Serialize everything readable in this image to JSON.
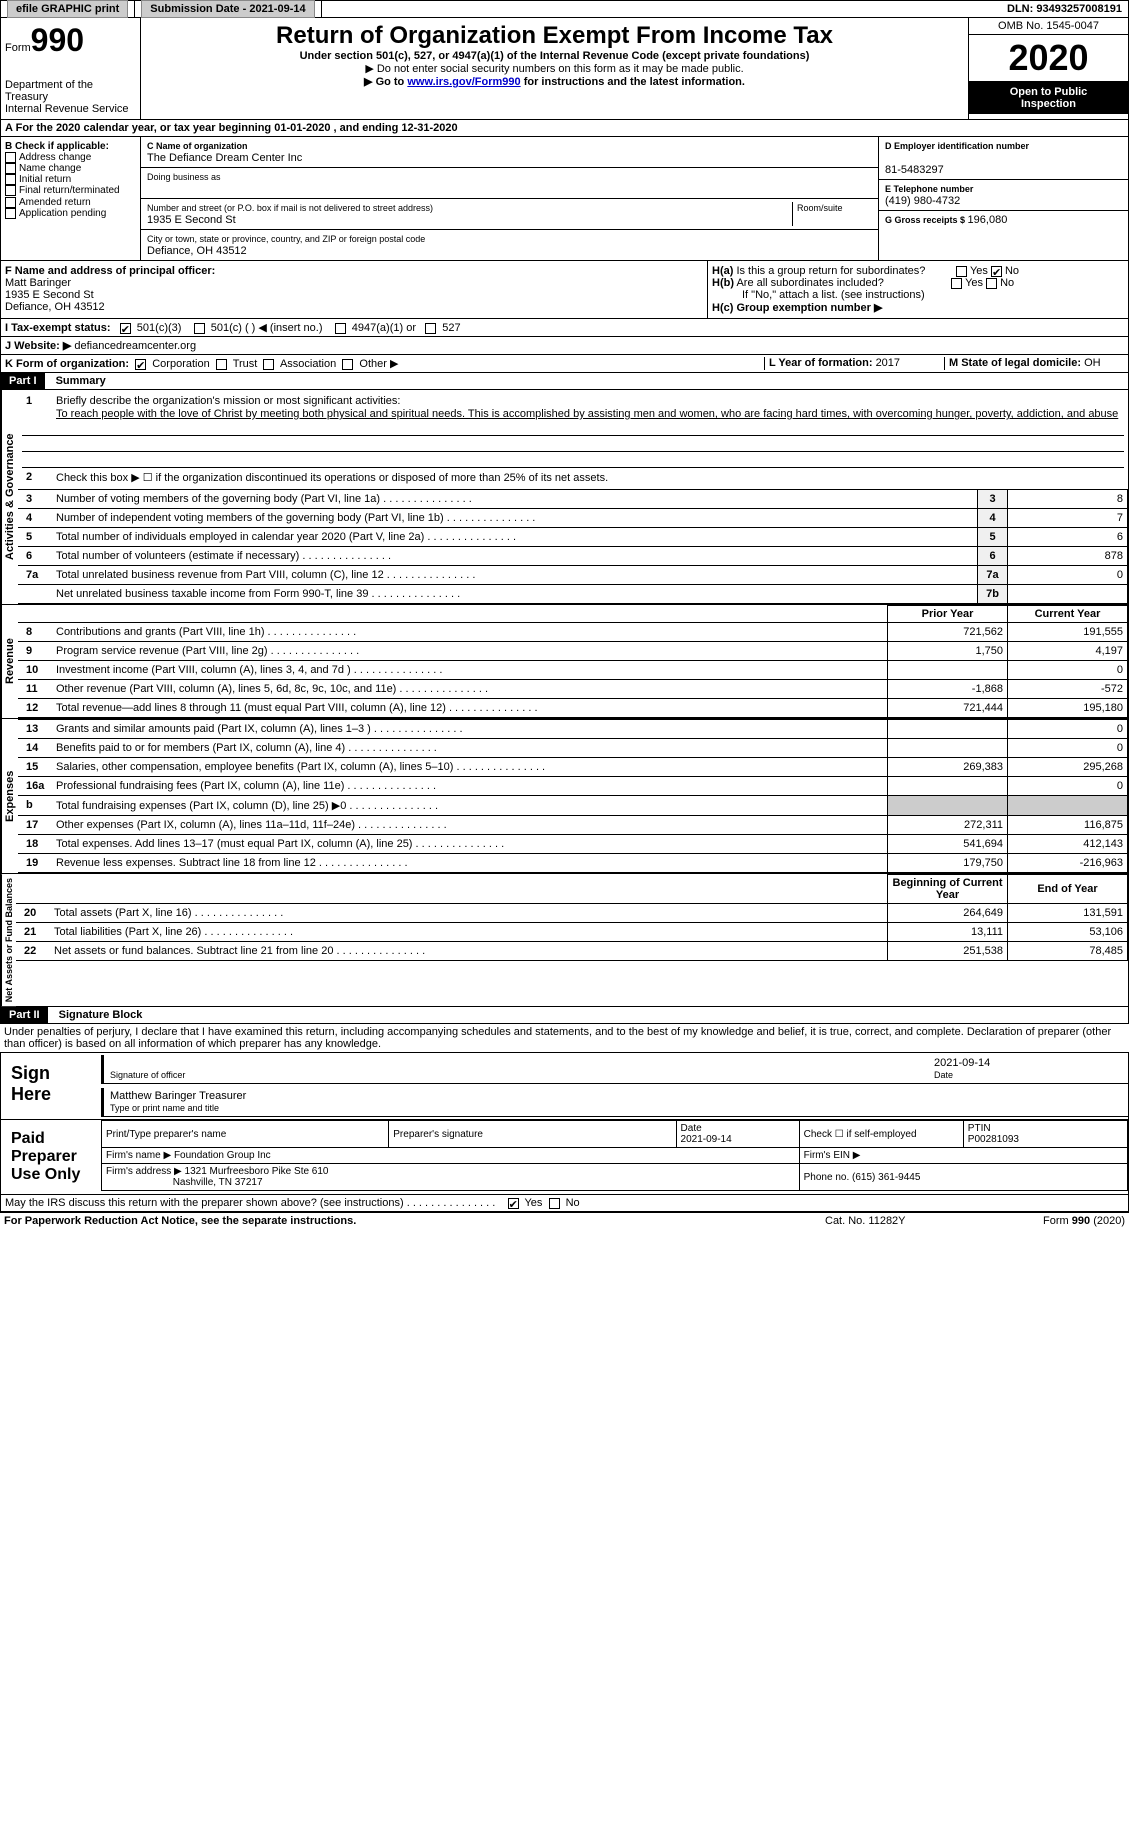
{
  "header": {
    "efile": "efile GRAPHIC print",
    "submission_label": "Submission Date - ",
    "submission_date": "2021-09-14",
    "dln_label": "DLN: ",
    "dln": "93493257008191"
  },
  "form_header": {
    "form_word": "Form",
    "form_num": "990",
    "dept1": "Department of the Treasury",
    "dept2": "Internal Revenue Service",
    "title": "Return of Organization Exempt From Income Tax",
    "subtitle": "Under section 501(c), 527, or 4947(a)(1) of the Internal Revenue Code (except private foundations)",
    "note1": "▶ Do not enter social security numbers on this form as it may be made public.",
    "note2_pre": "▶ Go to ",
    "note2_link": "www.irs.gov/Form990",
    "note2_post": " for instructions and the latest information.",
    "omb": "OMB No. 1545-0047",
    "year": "2020",
    "inspect1": "Open to Public",
    "inspect2": "Inspection"
  },
  "period": {
    "label_a": "A",
    "text": "For the 2020 calendar year, or tax year beginning 01-01-2020    , and ending 12-31-2020"
  },
  "box_b": {
    "label": "B Check if applicable:",
    "opts": [
      "Address change",
      "Name change",
      "Initial return",
      "Final return/terminated",
      "Amended return",
      "Application pending"
    ]
  },
  "box_c": {
    "label": "C Name of organization",
    "name": "The Defiance Dream Center Inc",
    "dba_label": "Doing business as",
    "addr_label": "Number and street (or P.O. box if mail is not delivered to street address)",
    "room_label": "Room/suite",
    "addr": "1935 E Second St",
    "city_label": "City or town, state or province, country, and ZIP or foreign postal code",
    "city": "Defiance, OH  43512"
  },
  "box_d": {
    "label": "D Employer identification number",
    "value": "81-5483297"
  },
  "box_e": {
    "label": "E Telephone number",
    "value": "(419) 980-4732"
  },
  "box_g": {
    "label": "G Gross receipts $ ",
    "value": "196,080"
  },
  "box_f": {
    "label": "F Name and address of principal officer:",
    "name": "Matt Baringer",
    "addr1": "1935 E Second St",
    "addr2": "Defiance, OH  43512"
  },
  "box_h": {
    "ha_label": "H(a)  Is this a group return for subordinates?",
    "hb_label": "H(b)  Are all subordinates included?",
    "hb_note": "If \"No,\" attach a list. (see instructions)",
    "hc_label": "H(c)  Group exemption number ▶",
    "yes": "Yes",
    "no": "No"
  },
  "box_i": {
    "label": "I    Tax-exempt status:",
    "o1": "501(c)(3)",
    "o2": "501(c) (  ) ◀ (insert no.)",
    "o3": "4947(a)(1) or",
    "o4": "527"
  },
  "box_j": {
    "label": "J   Website: ▶",
    "value": "defiancedreamcenter.org"
  },
  "box_k": {
    "label": "K Form of organization:",
    "o1": "Corporation",
    "o2": "Trust",
    "o3": "Association",
    "o4": "Other ▶"
  },
  "box_l": {
    "label": "L Year of formation: ",
    "value": "2017"
  },
  "box_m": {
    "label": "M State of legal domicile: ",
    "value": "OH"
  },
  "part1": {
    "label": "Part I",
    "title": "Summary",
    "vert_gov": "Activities & Governance",
    "vert_rev": "Revenue",
    "vert_exp": "Expenses",
    "vert_net": "Net Assets or Fund Balances",
    "q1": "Briefly describe the organization's mission or most significant activities:",
    "mission": "To reach people with the love of Christ by meeting both physical and spiritual needs. This is accomplished by assisting men and women, who are facing hard times, with overcoming hunger, poverty, addiction, and abuse",
    "q2": "Check this box ▶ ☐  if the organization discontinued its operations or disposed of more than 25% of its net assets.",
    "lines_gov": [
      {
        "n": "3",
        "t": "Number of voting members of the governing body (Part VI, line 1a)",
        "k": "3",
        "v": "8"
      },
      {
        "n": "4",
        "t": "Number of independent voting members of the governing body (Part VI, line 1b)",
        "k": "4",
        "v": "7"
      },
      {
        "n": "5",
        "t": "Total number of individuals employed in calendar year 2020 (Part V, line 2a)",
        "k": "5",
        "v": "6"
      },
      {
        "n": "6",
        "t": "Total number of volunteers (estimate if necessary)",
        "k": "6",
        "v": "878"
      },
      {
        "n": "7a",
        "t": "Total unrelated business revenue from Part VIII, column (C), line 12",
        "k": "7a",
        "v": "0"
      },
      {
        "n": "",
        "t": "Net unrelated business taxable income from Form 990-T, line 39",
        "k": "7b",
        "v": ""
      }
    ],
    "col_prior": "Prior Year",
    "col_current": "Current Year",
    "col_begin": "Beginning of Current Year",
    "col_end": "End of Year",
    "rev": [
      {
        "n": "8",
        "t": "Contributions and grants (Part VIII, line 1h)",
        "p": "721,562",
        "c": "191,555"
      },
      {
        "n": "9",
        "t": "Program service revenue (Part VIII, line 2g)",
        "p": "1,750",
        "c": "4,197"
      },
      {
        "n": "10",
        "t": "Investment income (Part VIII, column (A), lines 3, 4, and 7d )",
        "p": "",
        "c": "0"
      },
      {
        "n": "11",
        "t": "Other revenue (Part VIII, column (A), lines 5, 6d, 8c, 9c, 10c, and 11e)",
        "p": "-1,868",
        "c": "-572"
      },
      {
        "n": "12",
        "t": "Total revenue—add lines 8 through 11 (must equal Part VIII, column (A), line 12)",
        "p": "721,444",
        "c": "195,180"
      }
    ],
    "exp": [
      {
        "n": "13",
        "t": "Grants and similar amounts paid (Part IX, column (A), lines 1–3 )",
        "p": "",
        "c": "0"
      },
      {
        "n": "14",
        "t": "Benefits paid to or for members (Part IX, column (A), line 4)",
        "p": "",
        "c": "0"
      },
      {
        "n": "15",
        "t": "Salaries, other compensation, employee benefits (Part IX, column (A), lines 5–10)",
        "p": "269,383",
        "c": "295,268"
      },
      {
        "n": "16a",
        "t": "Professional fundraising fees (Part IX, column (A), line 11e)",
        "p": "",
        "c": "0"
      },
      {
        "n": "b",
        "t": "Total fundraising expenses (Part IX, column (D), line 25) ▶0",
        "p": "SHADE",
        "c": "SHADE"
      },
      {
        "n": "17",
        "t": "Other expenses (Part IX, column (A), lines 11a–11d, 11f–24e)",
        "p": "272,311",
        "c": "116,875"
      },
      {
        "n": "18",
        "t": "Total expenses. Add lines 13–17 (must equal Part IX, column (A), line 25)",
        "p": "541,694",
        "c": "412,143"
      },
      {
        "n": "19",
        "t": "Revenue less expenses. Subtract line 18 from line 12",
        "p": "179,750",
        "c": "-216,963"
      }
    ],
    "net": [
      {
        "n": "20",
        "t": "Total assets (Part X, line 16)",
        "p": "264,649",
        "c": "131,591"
      },
      {
        "n": "21",
        "t": "Total liabilities (Part X, line 26)",
        "p": "13,111",
        "c": "53,106"
      },
      {
        "n": "22",
        "t": "Net assets or fund balances. Subtract line 21 from line 20",
        "p": "251,538",
        "c": "78,485"
      }
    ]
  },
  "part2": {
    "label": "Part II",
    "title": "Signature Block",
    "declaration": "Under penalties of perjury, I declare that I have examined this return, including accompanying schedules and statements, and to the best of my knowledge and belief, it is true, correct, and complete. Declaration of preparer (other than officer) is based on all information of which preparer has any knowledge.",
    "sign_here": "Sign Here",
    "sig_officer": "Signature of officer",
    "sig_date": "2021-09-14",
    "date_label": "Date",
    "officer_name": "Matthew Baringer  Treasurer",
    "type_label": "Type or print name and title",
    "paid_label": "Paid Preparer Use Only",
    "h_preparer": "Print/Type preparer's name",
    "h_sig": "Preparer's signature",
    "h_date": "Date",
    "h_date_val": "2021-09-14",
    "h_check": "Check ☐ if self-employed",
    "h_ptin": "PTIN",
    "ptin": "P00281093",
    "firm_name_label": "Firm's name    ▶",
    "firm_name": "Foundation Group Inc",
    "firm_ein_label": "Firm's EIN ▶",
    "firm_addr_label": "Firm's address ▶",
    "firm_addr1": "1321 Murfreesboro Pike Ste 610",
    "firm_addr2": "Nashville, TN  37217",
    "phone_label": "Phone no. ",
    "phone": "(615) 361-9445",
    "discuss": "May the IRS discuss this return with the preparer shown above? (see instructions)",
    "yes": "Yes",
    "no": "No"
  },
  "footer": {
    "left": "For Paperwork Reduction Act Notice, see the separate instructions.",
    "mid": "Cat. No. 11282Y",
    "right": "Form 990 (2020)"
  }
}
